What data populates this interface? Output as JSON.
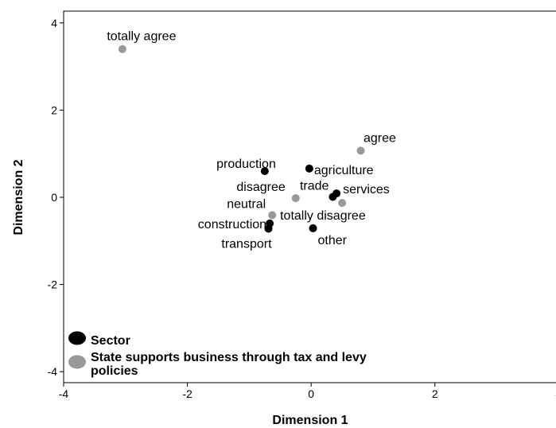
{
  "chart_data": {
    "type": "scatter",
    "xlabel": "Dimension 1",
    "ylabel": "Dimension 2",
    "xlim": [
      -4,
      4
    ],
    "ylim": [
      -4.2,
      4.2
    ],
    "x_ticks": [
      -4,
      -2,
      0,
      2,
      4
    ],
    "y_ticks": [
      -4,
      -2,
      0,
      2,
      4
    ],
    "x_tick_labels": [
      "-4",
      "-2",
      "0",
      "2",
      "4"
    ],
    "y_tick_labels": [
      "-4",
      "-2",
      "0",
      "2",
      "4"
    ],
    "grid": false,
    "legend_position": "bottom-left",
    "series": [
      {
        "name": "Sector",
        "color": "#000000",
        "points": [
          {
            "label": "production",
            "x": -0.75,
            "y": 0.6
          },
          {
            "label": "agriculture",
            "x": -0.03,
            "y": 0.66
          },
          {
            "label": "services",
            "x": 0.41,
            "y": 0.09
          },
          {
            "label": "trade",
            "x": 0.35,
            "y": 0.01
          },
          {
            "label": "construction",
            "x": -0.67,
            "y": -0.6
          },
          {
            "label": "transport",
            "x": -0.69,
            "y": -0.72
          },
          {
            "label": "other",
            "x": 0.03,
            "y": -0.71
          }
        ]
      },
      {
        "name": "State supports business through tax and levy policies",
        "color": "#999999",
        "points": [
          {
            "label": "totally agree",
            "x": -3.05,
            "y": 3.4
          },
          {
            "label": "agree",
            "x": 0.8,
            "y": 1.07
          },
          {
            "label": "disagree",
            "x": -0.25,
            "y": -0.02
          },
          {
            "label": "neutral",
            "x": -0.63,
            "y": -0.41
          },
          {
            "label": "totally disagree",
            "x": 0.5,
            "y": -0.13
          }
        ]
      }
    ]
  }
}
